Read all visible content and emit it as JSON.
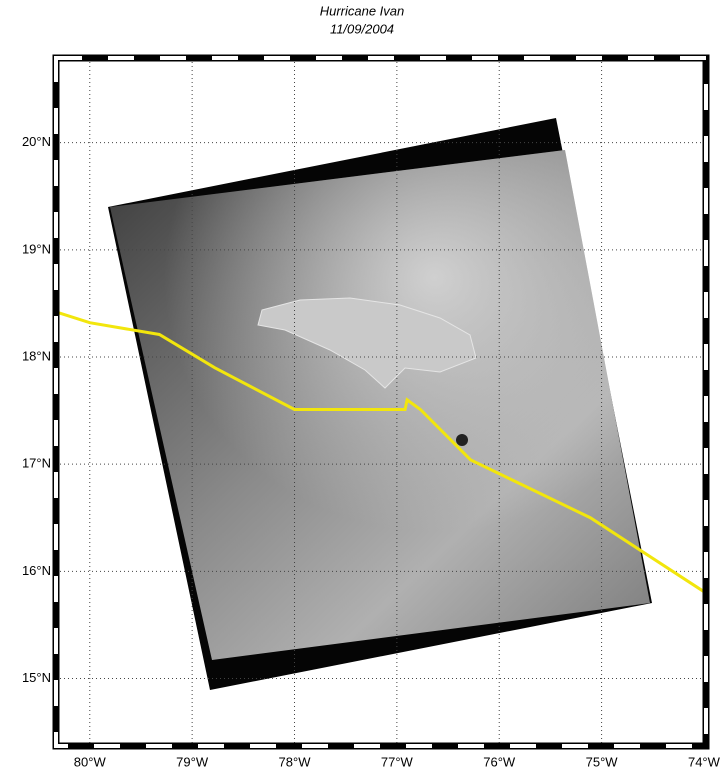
{
  "chart_data": {
    "type": "map",
    "title": "Hurricane Ivan",
    "subtitle": "11/09/2004",
    "xlim": [
      -80.33,
      -73.98
    ],
    "ylim": [
      14.37,
      20.79
    ],
    "xticks": [
      {
        "value": -80,
        "label": "80°W"
      },
      {
        "value": -79,
        "label": "79°W"
      },
      {
        "value": -78,
        "label": "78°W"
      },
      {
        "value": -77,
        "label": "77°W"
      },
      {
        "value": -76,
        "label": "76°W"
      },
      {
        "value": -75,
        "label": "75°W"
      },
      {
        "value": -74,
        "label": "74°W"
      }
    ],
    "yticks": [
      {
        "value": 15,
        "label": "15°N"
      },
      {
        "value": 16,
        "label": "16°N"
      },
      {
        "value": 17,
        "label": "17°N"
      },
      {
        "value": 18,
        "label": "18°N"
      },
      {
        "value": 19,
        "label": "19°N"
      },
      {
        "value": 20,
        "label": "20°N"
      }
    ],
    "grid": true,
    "series": [
      {
        "color": "#f2e60c",
        "x": [
          -80.33,
          -80.0,
          -79.32,
          -78.78,
          -78.0,
          -76.92,
          -76.9,
          -76.77,
          -76.28,
          -75.11,
          -74.0
        ],
        "values": [
          18.42,
          18.32,
          18.21,
          17.9,
          17.51,
          17.51,
          17.6,
          17.51,
          17.04,
          16.5,
          15.81
        ]
      }
    ]
  }
}
